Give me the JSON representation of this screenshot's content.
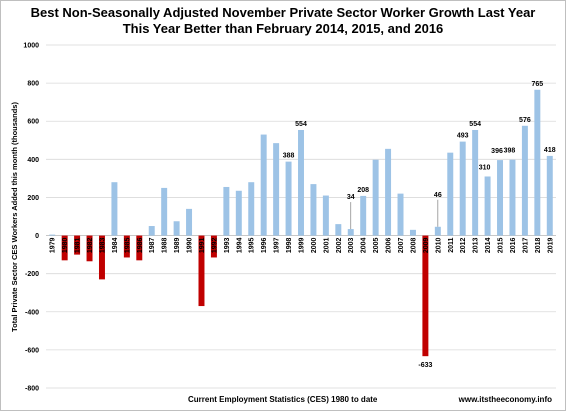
{
  "chart_data": {
    "type": "bar",
    "title_line1": "Best Non-Seasonally Adjusted November Private Sector Worker Growth Last Year",
    "title_line2": "This Year Better than February 2014, 2015, and 2016",
    "ylabel": "Total Private Sector CES Workers Added this month (thousands)",
    "xlabel": "Current Employment Statistics (CES) 1980 to date",
    "source": "www.itstheeconomy.info",
    "ylim": [
      -800,
      1000
    ],
    "yticks": [
      -800,
      -600,
      -400,
      -200,
      0,
      200,
      400,
      600,
      800,
      1000
    ],
    "grid": true,
    "colors": {
      "positive": "#9dc3e6",
      "negative": "#c00000"
    },
    "categories": [
      "1979",
      "1980",
      "1981",
      "1982",
      "1983",
      "1984",
      "1985",
      "1986",
      "1987",
      "1988",
      "1989",
      "1990",
      "1991",
      "1992",
      "1993",
      "1994",
      "1995",
      "1996",
      "1997",
      "1998",
      "1999",
      "2000",
      "2001",
      "2002",
      "2003",
      "2004",
      "2005",
      "2006",
      "2007",
      "2008",
      "2009",
      "2010",
      "2011",
      "2012",
      "2013",
      "2014",
      "2015",
      "2016",
      "2017",
      "2018",
      "2019"
    ],
    "values": [
      5,
      -130,
      -100,
      -135,
      -230,
      280,
      -115,
      -130,
      50,
      250,
      75,
      140,
      -370,
      -115,
      255,
      235,
      280,
      530,
      485,
      388,
      554,
      270,
      210,
      60,
      34,
      208,
      398,
      455,
      220,
      30,
      -633,
      46,
      435,
      493,
      554,
      310,
      396,
      398,
      576,
      765,
      418
    ],
    "data_labels": [
      {
        "category": "1998",
        "text": "388"
      },
      {
        "category": "1999",
        "text": "554"
      },
      {
        "category": "2003",
        "text": "34"
      },
      {
        "category": "2004",
        "text": "208"
      },
      {
        "category": "2009",
        "text": "-633"
      },
      {
        "category": "2010",
        "text": "46"
      },
      {
        "category": "2012",
        "text": "493"
      },
      {
        "category": "2013",
        "text": "554"
      },
      {
        "category": "2014",
        "text": "310"
      },
      {
        "category": "2015",
        "text": "396"
      },
      {
        "category": "2016",
        "text": "398"
      },
      {
        "category": "2017",
        "text": "576"
      },
      {
        "category": "2018",
        "text": "765"
      },
      {
        "category": "2019",
        "text": "418"
      }
    ]
  }
}
